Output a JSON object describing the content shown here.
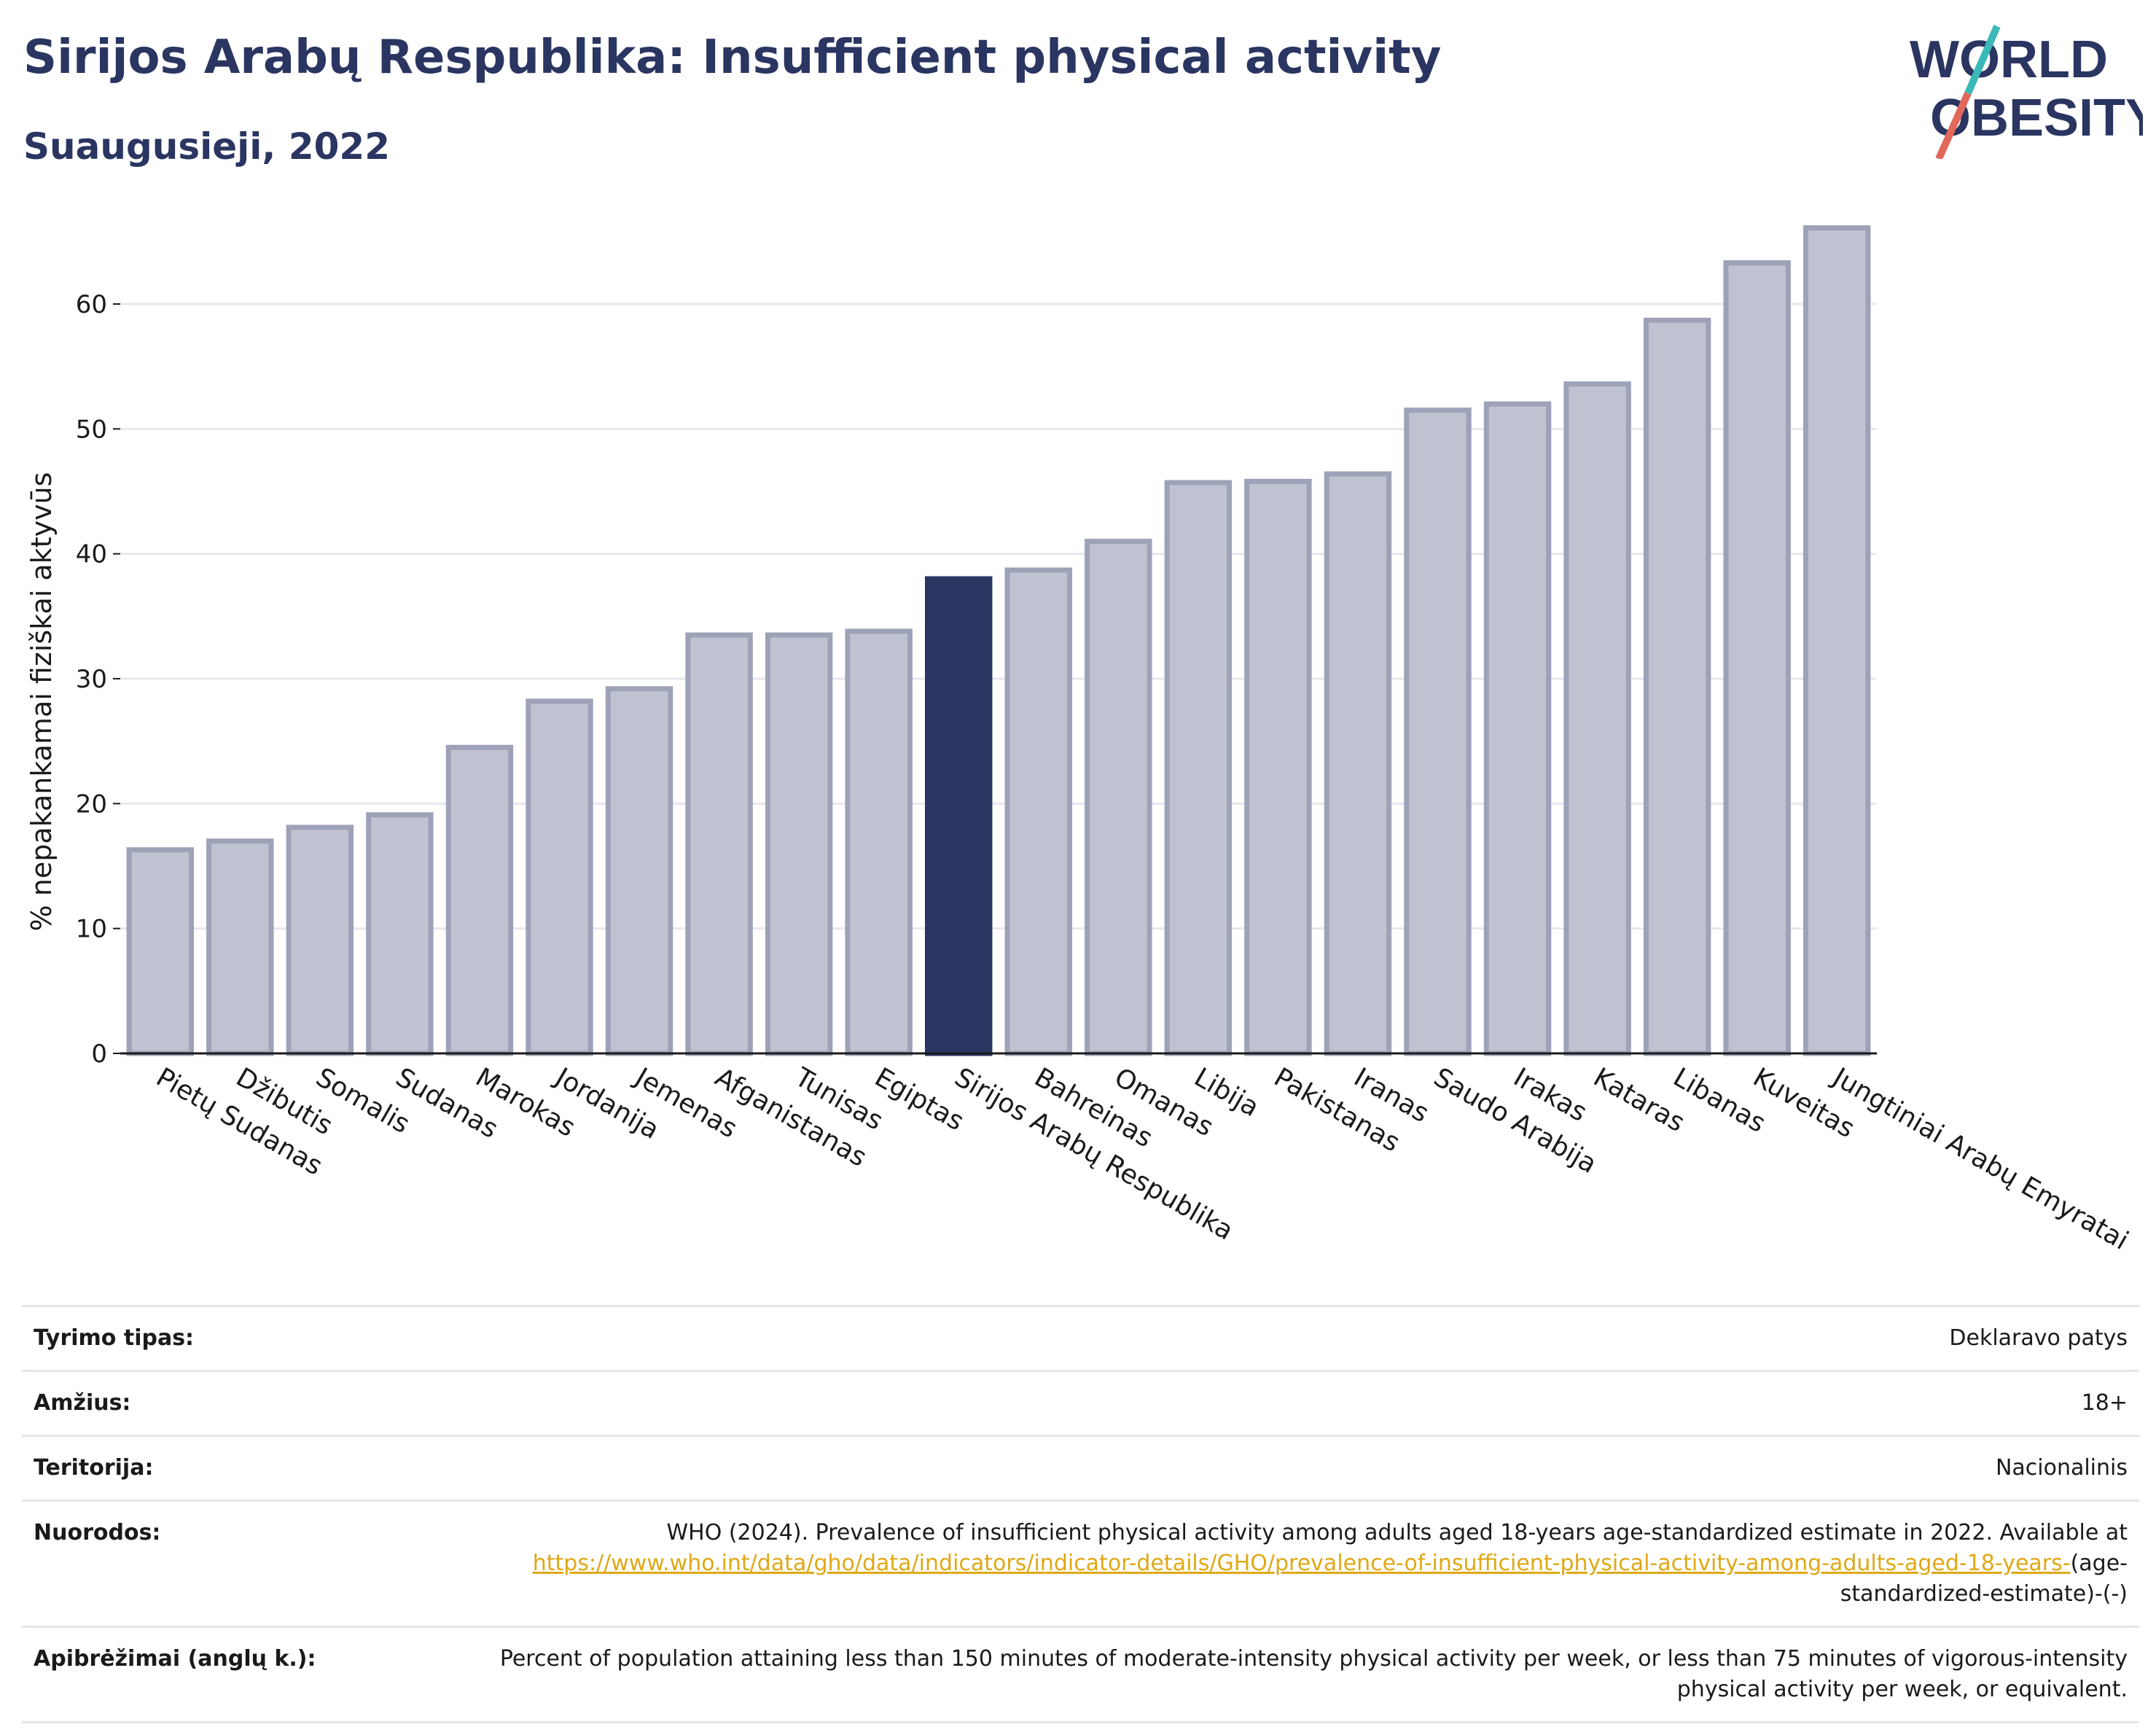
{
  "header": {
    "title": "Sirijos Arabų Respublika: Insufficient physical activity",
    "subtitle": "Suaugusieji, 2022"
  },
  "logo": {
    "line1": "WORLD",
    "line2": "OBESITY",
    "accent_teal": "#3bb8b8",
    "accent_red": "#e2685a"
  },
  "chart_data": {
    "type": "bar",
    "ylabel": "% nepakankamai fiziškai aktyvūs",
    "ylim": [
      0,
      68
    ],
    "yticks": [
      0,
      10,
      20,
      30,
      40,
      50,
      60
    ],
    "grid": true,
    "categories": [
      "Pietų Sudanas",
      "Džibutis",
      "Somalis",
      "Sudanas",
      "Marokas",
      "Jordanija",
      "Jemenas",
      "Afganistanas",
      "Tunisas",
      "Egiptas",
      "Sirijos Arabų Respublika",
      "Bahreinas",
      "Omanas",
      "Libija",
      "Pakistanas",
      "Iranas",
      "Saudo Arabija",
      "Irakas",
      "Kataras",
      "Libanas",
      "Kuveitas",
      "Jungtiniai Arabų Emyratai"
    ],
    "values": [
      16.3,
      17.0,
      18.1,
      19.1,
      24.5,
      28.2,
      29.2,
      33.5,
      33.5,
      33.8,
      38.0,
      38.7,
      41.0,
      45.7,
      45.8,
      46.4,
      51.5,
      52.0,
      53.6,
      58.7,
      63.3,
      66.1
    ],
    "highlight": "Sirijos Arabų Respublika",
    "colors": {
      "bar": "#bfc2d1",
      "bar_border": "#9da2b8",
      "highlight": "#2a3561",
      "grid": "#e6e8ee",
      "axis": "#1a1a1a"
    }
  },
  "meta": [
    {
      "key": "Tyrimo tipas:",
      "value": "Deklaravo patys"
    },
    {
      "key": "Amžius:",
      "value": "18+"
    },
    {
      "key": "Teritorija:",
      "value": "Nacionalinis"
    },
    {
      "key": "Nuorodos:",
      "value": "WHO (2024). Prevalence of insufficient physical activity among adults aged 18-years age-standardized estimate in 2022. Available at",
      "link": "https://www.who.int/data/gho/data/indicators/indicator-details/GHO/prevalence-of-insufficient-physical-activity-among-adults-aged-18-years-",
      "suffix": "(age-standardized-estimate)-(-)"
    },
    {
      "key": "Apibrėžimai (anglų k.):",
      "value": "Percent of population attaining less than 150 minutes of moderate-intensity physical activity per week, or less than 75 minutes of vigorous-intensity physical activity per week, or equivalent."
    }
  ]
}
